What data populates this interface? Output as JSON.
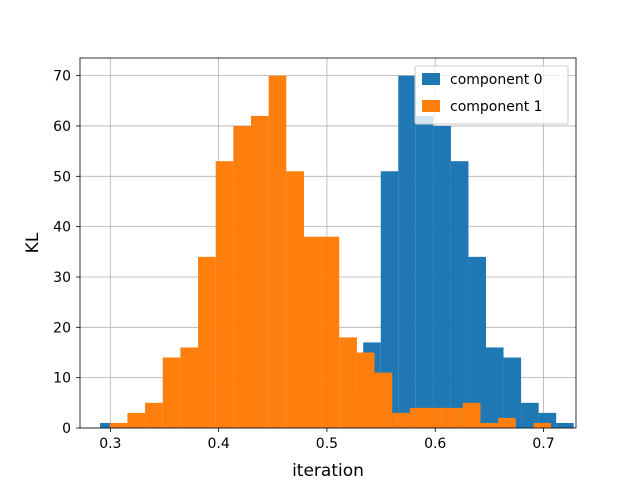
{
  "chart_data": {
    "type": "histogram",
    "xlabel": "iteration",
    "ylabel": "KL",
    "xlim": [
      0.272,
      0.73
    ],
    "ylim": [
      0,
      73.5
    ],
    "xticks": [
      0.3,
      0.4,
      0.5,
      0.6,
      0.7
    ],
    "xtick_labels": [
      "0.3",
      "0.4",
      "0.5",
      "0.6",
      "0.7"
    ],
    "yticks": [
      0,
      10,
      20,
      30,
      40,
      50,
      60,
      70
    ],
    "ytick_labels": [
      "0",
      "10",
      "20",
      "30",
      "40",
      "50",
      "60",
      "70"
    ],
    "grid": true,
    "legend_position": "upper-right",
    "series": [
      {
        "name": "component 0",
        "color": "#1f77b4",
        "bin_start": 0.2905,
        "bin_width": 0.0162,
        "counts": [
          1,
          0,
          0,
          0,
          0,
          0,
          0,
          0,
          0,
          0,
          0,
          0,
          0,
          0,
          7,
          17,
          51,
          70,
          62,
          60,
          53,
          34,
          16,
          14,
          5,
          3,
          1
        ]
      },
      {
        "name": "component 1",
        "color": "#ff7f0e",
        "bin_start": 0.2995,
        "bin_width": 0.0163,
        "counts": [
          1,
          3,
          5,
          14,
          16,
          34,
          53,
          60,
          62,
          70,
          51,
          38,
          38,
          18,
          15,
          11,
          3,
          4,
          4,
          4,
          5,
          1,
          2,
          0,
          1
        ]
      }
    ]
  }
}
